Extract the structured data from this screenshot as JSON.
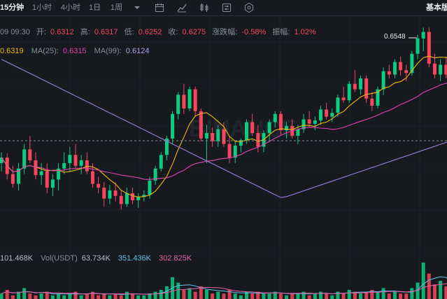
{
  "toolbar": {
    "intervals": [
      "15分钟",
      "1小时",
      "4小时",
      "1日",
      "1周"
    ],
    "active_interval": "15分钟",
    "right_label": "基本版",
    "icons": [
      "chevron-down-icon",
      "calendar-icon",
      "line-tool-icon",
      "candle-settings-icon",
      "sliders-icon",
      "hexagon-settings-icon"
    ]
  },
  "ohlc": {
    "time": "09 09:30",
    "open_label": "开:",
    "open": "0.6312",
    "high_label": "高:",
    "high": "0.6317",
    "low_label": "低:",
    "low": "0.6252",
    "close_label": "收:",
    "close": "0.6275",
    "change_label": "涨跌幅:",
    "change": "-0.58%",
    "amplitude_label": "振幅:",
    "amplitude": "1.02%"
  },
  "ma": {
    "ma7_value": "0.6319",
    "ma25_label": "MA(25):",
    "ma25_value": "0.6315",
    "ma99_label": "MA(99):",
    "ma99_value": "0.6124"
  },
  "volume": {
    "vol_value": "101.468K",
    "usdt_label": "Vol(USDT)",
    "usdt_value": "63.734K",
    "ma_a": "351.436K",
    "ma_b": "302.825K"
  },
  "chart": {
    "high_marker": "0.6548",
    "watermark": "BINANCE",
    "colors": {
      "up": "#0ECB81",
      "down": "#F6465D",
      "ma7": "#F0B90B",
      "ma25": "#E043B5",
      "ma99": "#9C7BE0",
      "vol_ma_a": "#5FC2E8",
      "vol_ma_b": "#E85FA6"
    }
  },
  "chart_data": {
    "type": "candlestick",
    "candles": [
      [
        0.63,
        0.632,
        0.6285,
        0.631
      ],
      [
        0.631,
        0.6318,
        0.627,
        0.628
      ],
      [
        0.628,
        0.6295,
        0.6255,
        0.6262
      ],
      [
        0.6262,
        0.63,
        0.625,
        0.629
      ],
      [
        0.629,
        0.6335,
        0.628,
        0.6325
      ],
      [
        0.6325,
        0.635,
        0.63,
        0.6305
      ],
      [
        0.6305,
        0.632,
        0.627,
        0.6278
      ],
      [
        0.6278,
        0.63,
        0.626,
        0.6285
      ],
      [
        0.6285,
        0.63,
        0.6245,
        0.6255
      ],
      [
        0.6255,
        0.628,
        0.624,
        0.627
      ],
      [
        0.627,
        0.63,
        0.625,
        0.629
      ],
      [
        0.629,
        0.632,
        0.628,
        0.63
      ],
      [
        0.63,
        0.633,
        0.6285,
        0.6315
      ],
      [
        0.6315,
        0.6335,
        0.629,
        0.6295
      ],
      [
        0.6295,
        0.6315,
        0.628,
        0.6305
      ],
      [
        0.6305,
        0.632,
        0.628,
        0.6285
      ],
      [
        0.6285,
        0.63,
        0.6255,
        0.6262
      ],
      [
        0.6262,
        0.6275,
        0.6245,
        0.6255
      ],
      [
        0.6255,
        0.6265,
        0.622,
        0.6235
      ],
      [
        0.6235,
        0.626,
        0.6225,
        0.625
      ],
      [
        0.625,
        0.6265,
        0.623,
        0.624
      ],
      [
        0.624,
        0.625,
        0.6215,
        0.6225
      ],
      [
        0.6225,
        0.6255,
        0.622,
        0.6245
      ],
      [
        0.6245,
        0.6255,
        0.6225,
        0.6232
      ],
      [
        0.6232,
        0.6245,
        0.6218,
        0.6238
      ],
      [
        0.6238,
        0.625,
        0.623,
        0.6242
      ],
      [
        0.6242,
        0.6275,
        0.6235,
        0.6268
      ],
      [
        0.6268,
        0.6295,
        0.626,
        0.629
      ],
      [
        0.629,
        0.632,
        0.6285,
        0.6315
      ],
      [
        0.6315,
        0.635,
        0.6305,
        0.6345
      ],
      [
        0.6345,
        0.6395,
        0.6335,
        0.639
      ],
      [
        0.639,
        0.643,
        0.638,
        0.6425
      ],
      [
        0.6425,
        0.6445,
        0.639,
        0.64
      ],
      [
        0.64,
        0.644,
        0.6395,
        0.6435
      ],
      [
        0.6435,
        0.644,
        0.6385,
        0.6395
      ],
      [
        0.6395,
        0.64,
        0.634,
        0.6345
      ],
      [
        0.6345,
        0.637,
        0.63,
        0.6355
      ],
      [
        0.6355,
        0.6365,
        0.633,
        0.634
      ],
      [
        0.634,
        0.637,
        0.633,
        0.6362
      ],
      [
        0.6362,
        0.6375,
        0.633,
        0.6335
      ],
      [
        0.6335,
        0.635,
        0.63,
        0.631
      ],
      [
        0.631,
        0.634,
        0.63,
        0.6332
      ],
      [
        0.6332,
        0.6345,
        0.632,
        0.6342
      ],
      [
        0.6342,
        0.638,
        0.6335,
        0.6375
      ],
      [
        0.6375,
        0.639,
        0.635,
        0.6355
      ],
      [
        0.6355,
        0.637,
        0.632,
        0.633
      ],
      [
        0.633,
        0.636,
        0.632,
        0.6355
      ],
      [
        0.6355,
        0.638,
        0.634,
        0.6375
      ],
      [
        0.6375,
        0.6395,
        0.6365,
        0.639
      ],
      [
        0.639,
        0.6395,
        0.635,
        0.636
      ],
      [
        0.636,
        0.6375,
        0.6345,
        0.6368
      ],
      [
        0.6368,
        0.638,
        0.6345,
        0.635
      ],
      [
        0.635,
        0.637,
        0.6335,
        0.6362
      ],
      [
        0.6362,
        0.639,
        0.6355,
        0.638
      ],
      [
        0.638,
        0.6395,
        0.6365,
        0.6372
      ],
      [
        0.6372,
        0.6385,
        0.636,
        0.6378
      ],
      [
        0.6378,
        0.6405,
        0.637,
        0.6398
      ],
      [
        0.6398,
        0.641,
        0.638,
        0.6385
      ],
      [
        0.6385,
        0.64,
        0.6375,
        0.6392
      ],
      [
        0.6392,
        0.6425,
        0.6385,
        0.642
      ],
      [
        0.642,
        0.644,
        0.641,
        0.6415
      ],
      [
        0.6415,
        0.645,
        0.641,
        0.6445
      ],
      [
        0.6445,
        0.647,
        0.643,
        0.6435
      ],
      [
        0.6435,
        0.646,
        0.6425,
        0.6455
      ],
      [
        0.6455,
        0.646,
        0.641,
        0.6418
      ],
      [
        0.6418,
        0.643,
        0.6395,
        0.6405
      ],
      [
        0.6405,
        0.644,
        0.64,
        0.6435
      ],
      [
        0.6435,
        0.6475,
        0.6425,
        0.6468
      ],
      [
        0.6468,
        0.648,
        0.6455,
        0.6462
      ],
      [
        0.6462,
        0.649,
        0.6455,
        0.6485
      ],
      [
        0.6485,
        0.6495,
        0.646,
        0.647
      ],
      [
        0.647,
        0.648,
        0.645,
        0.6465
      ],
      [
        0.6465,
        0.6505,
        0.646,
        0.65
      ],
      [
        0.65,
        0.6535,
        0.649,
        0.6528
      ],
      [
        0.6528,
        0.6548,
        0.6505,
        0.654
      ],
      [
        0.654,
        0.6548,
        0.6475,
        0.6482
      ],
      [
        0.6482,
        0.65,
        0.6455,
        0.6462
      ],
      [
        0.6462,
        0.649,
        0.645,
        0.648
      ],
      [
        0.648,
        0.6495,
        0.6455,
        0.6462
      ],
      [
        0.6462,
        0.648,
        0.6452,
        0.6475
      ]
    ],
    "volume": [
      3,
      5,
      2,
      4,
      6,
      3,
      2,
      3,
      4,
      2,
      3,
      2,
      3,
      4,
      2,
      3,
      4,
      2,
      3,
      2,
      3,
      2,
      4,
      3,
      2,
      2,
      3,
      4,
      5,
      7,
      12,
      9,
      5,
      6,
      4,
      7,
      5,
      3,
      4,
      3,
      5,
      3,
      2,
      4,
      3,
      4,
      3,
      3,
      4,
      3,
      2,
      3,
      3,
      4,
      2,
      3,
      4,
      3,
      2,
      4,
      3,
      5,
      4,
      3,
      4,
      5,
      4,
      6,
      3,
      4,
      3,
      3,
      6,
      9,
      20,
      14,
      8,
      10,
      7,
      6
    ],
    "ma99_series_start": 0.649,
    "ylim": [
      0.615,
      0.656
    ]
  }
}
